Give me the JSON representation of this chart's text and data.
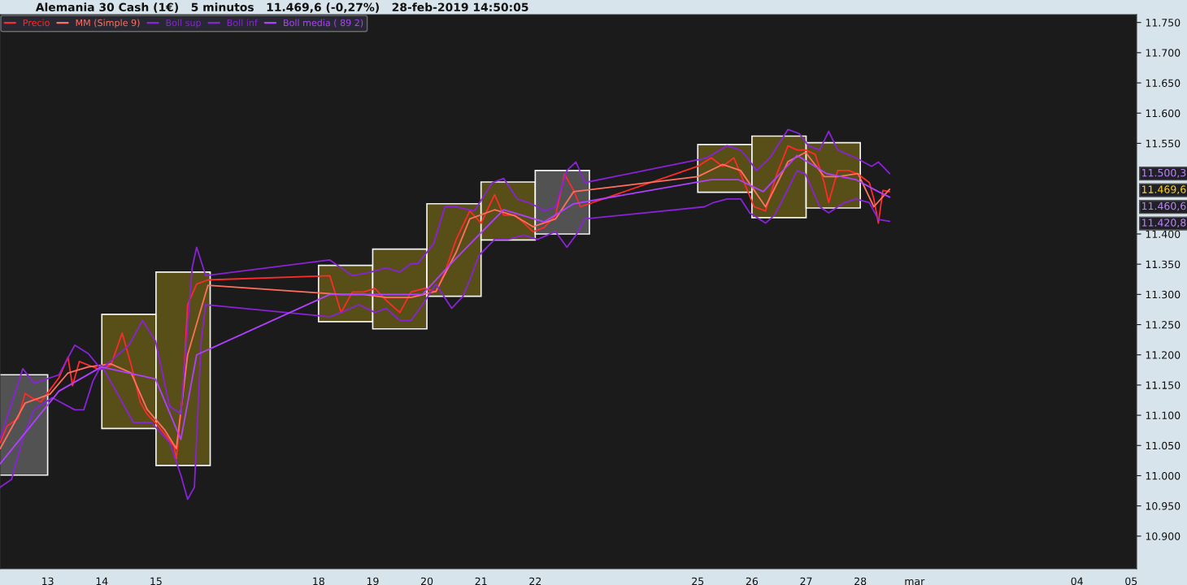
{
  "chart_data": {
    "type": "line",
    "title": "Alemania 30 Cash (1€)   5 minutos   11.469,6 (-0,27%)   28-feb-2019 14:50:05",
    "xlim": [
      "2019-02-12T02:53",
      "2019-03-05T02:24"
    ],
    "xticks": [
      {
        "value": "2019-02-13",
        "label": "13"
      },
      {
        "value": "2019-02-14",
        "label": "14"
      },
      {
        "value": "2019-02-15",
        "label": "15"
      },
      {
        "value": "2019-02-18",
        "label": "18"
      },
      {
        "value": "2019-02-19",
        "label": "19"
      },
      {
        "value": "2019-02-20",
        "label": "20"
      },
      {
        "value": "2019-02-21",
        "label": "21"
      },
      {
        "value": "2019-02-22",
        "label": "22"
      },
      {
        "value": "2019-02-25",
        "label": "25"
      },
      {
        "value": "2019-02-26",
        "label": "26"
      },
      {
        "value": "2019-02-27",
        "label": "27"
      },
      {
        "value": "2019-02-28",
        "label": "28"
      },
      {
        "value": "2019-03-01",
        "label": "mar"
      },
      {
        "value": "2019-03-04",
        "label": "04"
      },
      {
        "value": "2019-03-05",
        "label": "05"
      }
    ],
    "ylim": [
      10846,
      11763
    ],
    "yticks": [
      {
        "value": 10900,
        "label": "10.900"
      },
      {
        "value": 10950,
        "label": "10.950"
      },
      {
        "value": 11000,
        "label": "11.000"
      },
      {
        "value": 11050,
        "label": "11.050"
      },
      {
        "value": 11100,
        "label": "11.100"
      },
      {
        "value": 11150,
        "label": "11.150"
      },
      {
        "value": 11200,
        "label": "11.200"
      },
      {
        "value": 11250,
        "label": "11.250"
      },
      {
        "value": 11300,
        "label": "11.300"
      },
      {
        "value": 11350,
        "label": "11.350"
      },
      {
        "value": 11400,
        "label": "11.400"
      },
      {
        "value": 11550,
        "label": "11.550"
      },
      {
        "value": 11600,
        "label": "11.600"
      },
      {
        "value": 11650,
        "label": "11.650"
      },
      {
        "value": 11700,
        "label": "11.700"
      },
      {
        "value": 11750,
        "label": "11.750"
      }
    ],
    "grid": false,
    "legend": "top left",
    "series": [
      {
        "type": "bar",
        "x": [
          "2019-02-12T12:00",
          "2019-02-14T12:00",
          "2019-02-15T12:00",
          "2019-02-18T12:00",
          "2019-02-19T12:00",
          "2019-02-20T12:00",
          "2019-02-21T12:00",
          "2019-02-22T12:00",
          "2019-02-25T12:00",
          "2019-02-26T12:00",
          "2019-02-27T12:00"
        ],
        "base": [
          11001,
          11078,
          11017,
          11255,
          11243,
          11297,
          11390,
          11400,
          11469,
          11427,
          11443
        ],
        "values": [
          166,
          189,
          320,
          93,
          132,
          153,
          96,
          105,
          79,
          135,
          108
        ],
        "colors": [
          "#555555",
          "#5b5217",
          "#5b5217",
          "#5b5217",
          "#5b5217",
          "#5b5217",
          "#5b5217",
          "#555555",
          "#5b5217",
          "#5b5217",
          "#5b5217"
        ]
      },
      {
        "name": "Precio",
        "color": "#ff2a2a",
        "x": [
          "2019-02-12T03:00",
          "2019-02-12T06:00",
          "2019-02-12T11:00",
          "2019-02-12T14:00",
          "2019-02-12T17:00",
          "2019-02-12T21:00",
          "2019-02-13T01:00",
          "2019-02-13T05:00",
          "2019-02-13T09:00",
          "2019-02-13T11:00",
          "2019-02-13T14:00",
          "2019-02-13T18:00",
          "2019-02-13T23:00",
          "2019-02-14T04:00",
          "2019-02-14T09:00",
          "2019-02-14T13:00",
          "2019-02-14T17:00",
          "2019-02-14T20:00",
          "2019-02-14T23:45",
          "2019-02-15T04:00",
          "2019-02-15T08:00",
          "2019-02-15T09:00",
          "2019-02-15T12:00",
          "2019-02-15T14:00",
          "2019-02-15T18:00",
          "2019-02-15T23:00",
          "2019-02-18T05:00",
          "2019-02-18T10:00",
          "2019-02-18T15:00",
          "2019-02-18T20:00",
          "2019-02-19T01:00",
          "2019-02-19T06:00",
          "2019-02-19T12:00",
          "2019-02-19T17:00",
          "2019-02-19T23:00",
          "2019-02-20T04:00",
          "2019-02-20T08:00",
          "2019-02-20T13:00",
          "2019-02-20T19:00",
          "2019-02-21T00:00",
          "2019-02-21T06:00",
          "2019-02-21T10:00",
          "2019-02-21T15:00",
          "2019-02-21T19:00",
          "2019-02-21T23:00",
          "2019-02-22T04:00",
          "2019-02-22T09:00",
          "2019-02-22T13:00",
          "2019-02-22T17:00",
          "2019-02-22T20:00",
          "2019-02-25T00:00",
          "2019-02-25T06:00",
          "2019-02-25T11:00",
          "2019-02-25T16:00",
          "2019-02-25T19:00",
          "2019-02-26T01:00",
          "2019-02-26T06:00",
          "2019-02-26T11:00",
          "2019-02-26T16:00",
          "2019-02-26T20:00",
          "2019-02-26T23:45",
          "2019-02-27T04:00",
          "2019-02-27T08:00",
          "2019-02-27T10:00",
          "2019-02-27T14:00",
          "2019-02-27T19:00",
          "2019-02-27T23:00",
          "2019-02-28T04:00",
          "2019-02-28T06:00",
          "2019-02-28T08:00",
          "2019-02-28T10:00",
          "2019-02-28T13:00"
        ],
        "values": [
          11055,
          11082,
          11095,
          11136,
          11129,
          11122,
          11142,
          11162,
          11196,
          11149,
          11189,
          11183,
          11176,
          11183,
          11236,
          11183,
          11122,
          11102,
          11088,
          11068,
          11048,
          11028,
          11142,
          11283,
          11317,
          11324,
          11331,
          11270,
          11304,
          11304,
          11310,
          11290,
          11270,
          11304,
          11310,
          11304,
          11337,
          11391,
          11438,
          11418,
          11465,
          11431,
          11431,
          11418,
          11404,
          11411,
          11431,
          11499,
          11472,
          11445,
          11512,
          11526,
          11512,
          11526,
          11499,
          11445,
          11438,
          11499,
          11546,
          11539,
          11539,
          11532,
          11485,
          11452,
          11505,
          11505,
          11499,
          11485,
          11458,
          11418,
          11472,
          11470
        ]
      },
      {
        "name": "MM (Simple 9)",
        "color": "#ff7060",
        "x": [
          "2019-02-12T03:00",
          "2019-02-12T14:00",
          "2019-02-13T01:00",
          "2019-02-13T09:00",
          "2019-02-13T18:00",
          "2019-02-14T04:00",
          "2019-02-14T13:00",
          "2019-02-14T20:00",
          "2019-02-15T04:00",
          "2019-02-15T09:00",
          "2019-02-15T14:00",
          "2019-02-15T23:00",
          "2019-02-18T10:00",
          "2019-02-18T20:00",
          "2019-02-19T06:00",
          "2019-02-19T17:00",
          "2019-02-20T04:00",
          "2019-02-20T13:00",
          "2019-02-20T19:00",
          "2019-02-21T06:00",
          "2019-02-21T15:00",
          "2019-02-21T23:00",
          "2019-02-22T09:00",
          "2019-02-22T17:00",
          "2019-02-25T00:00",
          "2019-02-25T11:00",
          "2019-02-25T19:00",
          "2019-02-26T06:00",
          "2019-02-26T16:00",
          "2019-02-26T23:45",
          "2019-02-27T08:00",
          "2019-02-27T14:00",
          "2019-02-27T23:00",
          "2019-02-28T06:00",
          "2019-02-28T13:00"
        ],
        "values": [
          11045,
          11120,
          11135,
          11170,
          11180,
          11185,
          11170,
          11110,
          11075,
          11045,
          11200,
          11315,
          11300,
          11300,
          11295,
          11295,
          11305,
          11370,
          11425,
          11440,
          11430,
          11412,
          11425,
          11470,
          11495,
          11515,
          11505,
          11445,
          11520,
          11535,
          11495,
          11495,
          11500,
          11445,
          11474
        ]
      },
      {
        "name": "Boll sup",
        "color": "#8a22d8",
        "x": [
          "2019-02-12T03:00",
          "2019-02-12T13:00",
          "2019-02-12T18:00",
          "2019-02-13T05:00",
          "2019-02-13T12:00",
          "2019-02-13T18:00",
          "2019-02-13T23:45",
          "2019-02-14T12:00",
          "2019-02-14T18:00",
          "2019-02-14T23:45",
          "2019-02-15T06:00",
          "2019-02-15T11:00",
          "2019-02-15T16:00",
          "2019-02-15T18:00",
          "2019-02-15T22:00",
          "2019-02-18T05:00",
          "2019-02-18T10:00",
          "2019-02-18T15:00",
          "2019-02-18T23:00",
          "2019-02-19T06:00",
          "2019-02-19T12:00",
          "2019-02-19T17:00",
          "2019-02-19T20:00",
          "2019-02-20T03:00",
          "2019-02-20T08:00",
          "2019-02-20T13:00",
          "2019-02-20T21:00",
          "2019-02-21T05:00",
          "2019-02-21T10:00",
          "2019-02-21T16:00",
          "2019-02-21T21:00",
          "2019-02-22T01:00",
          "2019-02-22T04:00",
          "2019-02-22T09:00",
          "2019-02-22T14:00",
          "2019-02-22T18:00",
          "2019-02-22T22:00",
          "2019-02-25T04:00",
          "2019-02-25T13:00",
          "2019-02-25T19:00",
          "2019-02-25T22:00",
          "2019-02-26T02:00",
          "2019-02-26T08:00",
          "2019-02-26T16:00",
          "2019-02-26T21:00",
          "2019-02-27T01:00",
          "2019-02-27T06:00",
          "2019-02-27T10:00",
          "2019-02-27T14:00",
          "2019-02-27T22:00",
          "2019-02-28T05:00",
          "2019-02-28T08:00",
          "2019-02-28T13:00"
        ],
        "values": [
          11062,
          11177,
          11153,
          11167,
          11216,
          11202,
          11176,
          11216,
          11257,
          11223,
          11115,
          11102,
          11344,
          11378,
          11331,
          11357,
          11344,
          11331,
          11337,
          11344,
          11337,
          11351,
          11351,
          11384,
          11445,
          11445,
          11438,
          11485,
          11492,
          11458,
          11452,
          11445,
          11438,
          11445,
          11505,
          11519,
          11485,
          11526,
          11546,
          11539,
          11526,
          11505,
          11526,
          11573,
          11566,
          11546,
          11539,
          11570,
          11539,
          11526,
          11512,
          11519,
          11500
        ]
      },
      {
        "name": "Boll inf",
        "color": "#8a22d8",
        "x": [
          "2019-02-12T03:00",
          "2019-02-12T08:00",
          "2019-02-12T13:00",
          "2019-02-12T18:00",
          "2019-02-13T02:00",
          "2019-02-13T12:00",
          "2019-02-13T16:00",
          "2019-02-13T20:00",
          "2019-02-13T23:45",
          "2019-02-14T06:00",
          "2019-02-14T14:00",
          "2019-02-14T22:00",
          "2019-02-15T06:00",
          "2019-02-15T11:00",
          "2019-02-15T14:00",
          "2019-02-15T17:00",
          "2019-02-15T20:00",
          "2019-02-15T22:00",
          "2019-02-18T05:00",
          "2019-02-18T10:00",
          "2019-02-18T18:00",
          "2019-02-19T01:00",
          "2019-02-19T06:00",
          "2019-02-19T12:00",
          "2019-02-19T17:00",
          "2019-02-19T22:00",
          "2019-02-20T04:00",
          "2019-02-20T11:00",
          "2019-02-20T16:00",
          "2019-02-20T19:00",
          "2019-02-20T23:00",
          "2019-02-21T06:00",
          "2019-02-21T12:00",
          "2019-02-21T19:00",
          "2019-02-22T01:00",
          "2019-02-22T09:00",
          "2019-02-22T14:00",
          "2019-02-22T18:00",
          "2019-02-22T22:00",
          "2019-02-25T03:00",
          "2019-02-25T07:00",
          "2019-02-25T13:00",
          "2019-02-25T19:00",
          "2019-02-25T23:00",
          "2019-02-26T06:00",
          "2019-02-26T10:00",
          "2019-02-26T13:00",
          "2019-02-26T20:00",
          "2019-02-26T23:45",
          "2019-02-27T06:00",
          "2019-02-27T10:00",
          "2019-02-27T17:00",
          "2019-02-27T22:00",
          "2019-02-28T04:00",
          "2019-02-28T08:00",
          "2019-02-28T13:00"
        ],
        "values": [
          10981,
          10994,
          11062,
          11109,
          11129,
          11109,
          11109,
          11156,
          11183,
          11142,
          11088,
          11088,
          11055,
          11001,
          10961,
          10981,
          11223,
          11283,
          11263,
          11270,
          11283,
          11270,
          11277,
          11257,
          11257,
          11283,
          11317,
          11277,
          11297,
          11324,
          11364,
          11391,
          11391,
          11398,
          11391,
          11404,
          11378,
          11398,
          11425,
          11445,
          11452,
          11458,
          11458,
          11435,
          11418,
          11431,
          11452,
          11505,
          11499,
          11445,
          11435,
          11452,
          11458,
          11452,
          11424,
          11421
        ]
      },
      {
        "name": "Boll media ( 89 2)",
        "color": "#b040ff",
        "x": [
          "2019-02-12T03:00",
          "2019-02-13T05:00",
          "2019-02-13T23:45",
          "2019-02-14T23:45",
          "2019-02-15T11:00",
          "2019-02-15T18:00",
          "2019-02-18T05:00",
          "2019-02-18T23:00",
          "2019-02-19T22:00",
          "2019-02-20T13:00",
          "2019-02-21T10:00",
          "2019-02-22T04:00",
          "2019-02-22T17:00",
          "2019-02-25T06:00",
          "2019-02-25T18:00",
          "2019-02-26T05:00",
          "2019-02-26T20:00",
          "2019-02-27T09:00",
          "2019-02-27T22:00",
          "2019-02-28T08:00",
          "2019-02-28T13:00"
        ],
        "values": [
          11020,
          11140,
          11180,
          11160,
          11060,
          11200,
          11300,
          11300,
          11300,
          11360,
          11440,
          11420,
          11450,
          11490,
          11490,
          11470,
          11530,
          11500,
          11490,
          11470,
          11461
        ]
      }
    ],
    "annotations": [
      "11.500,3",
      "11.469,6",
      "11.460,6",
      "11.420,8"
    ]
  }
}
